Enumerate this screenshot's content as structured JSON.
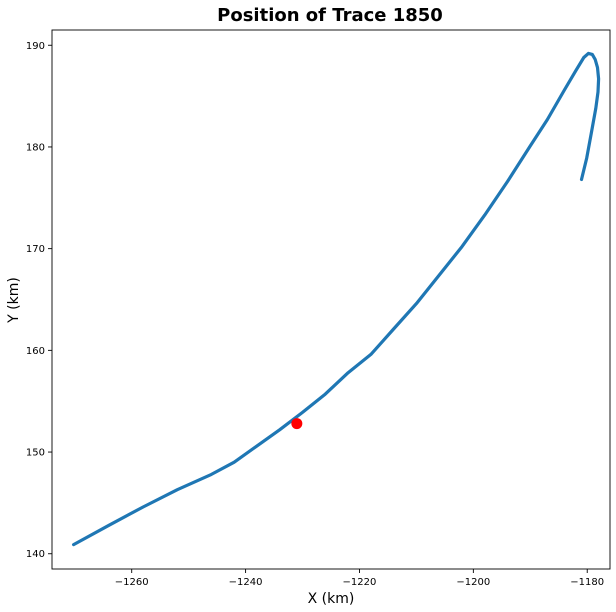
{
  "chart_data": {
    "type": "line",
    "title": "Position of Trace 1850",
    "xlabel": "X (km)",
    "ylabel": "Y (km)",
    "xlim": [
      -1274,
      -1176
    ],
    "ylim": [
      138.5,
      191.5
    ],
    "xticks": [
      -1260,
      -1240,
      -1220,
      -1200,
      -1180
    ],
    "yticks": [
      140,
      150,
      160,
      170,
      180,
      190
    ],
    "grid": false,
    "series": [
      {
        "color": "#1f77b4",
        "x": [
          -1270.2,
          -1264,
          -1258,
          -1252,
          -1246,
          -1242,
          -1238,
          -1234,
          -1230,
          -1226,
          -1222,
          -1218,
          -1214,
          -1210,
          -1206,
          -1202,
          -1198,
          -1194,
          -1190,
          -1187,
          -1184,
          -1182,
          -1180.6,
          -1179.8,
          -1179.1,
          -1178.6,
          -1178.2,
          -1178.0,
          -1178.1,
          -1178.5,
          -1179.3,
          -1180.1,
          -1181.0
        ],
        "y": [
          140.9,
          142.8,
          144.6,
          146.3,
          147.8,
          149.0,
          150.6,
          152.2,
          153.9,
          155.7,
          157.8,
          159.6,
          162.1,
          164.6,
          167.4,
          170.2,
          173.3,
          176.6,
          180.1,
          182.7,
          185.6,
          187.5,
          188.8,
          189.2,
          189.1,
          188.6,
          187.8,
          186.7,
          185.4,
          183.8,
          181.3,
          178.9,
          176.8
        ]
      }
    ],
    "marker": {
      "x": -1231,
      "y": 152.8,
      "color": "#ff0000"
    }
  }
}
